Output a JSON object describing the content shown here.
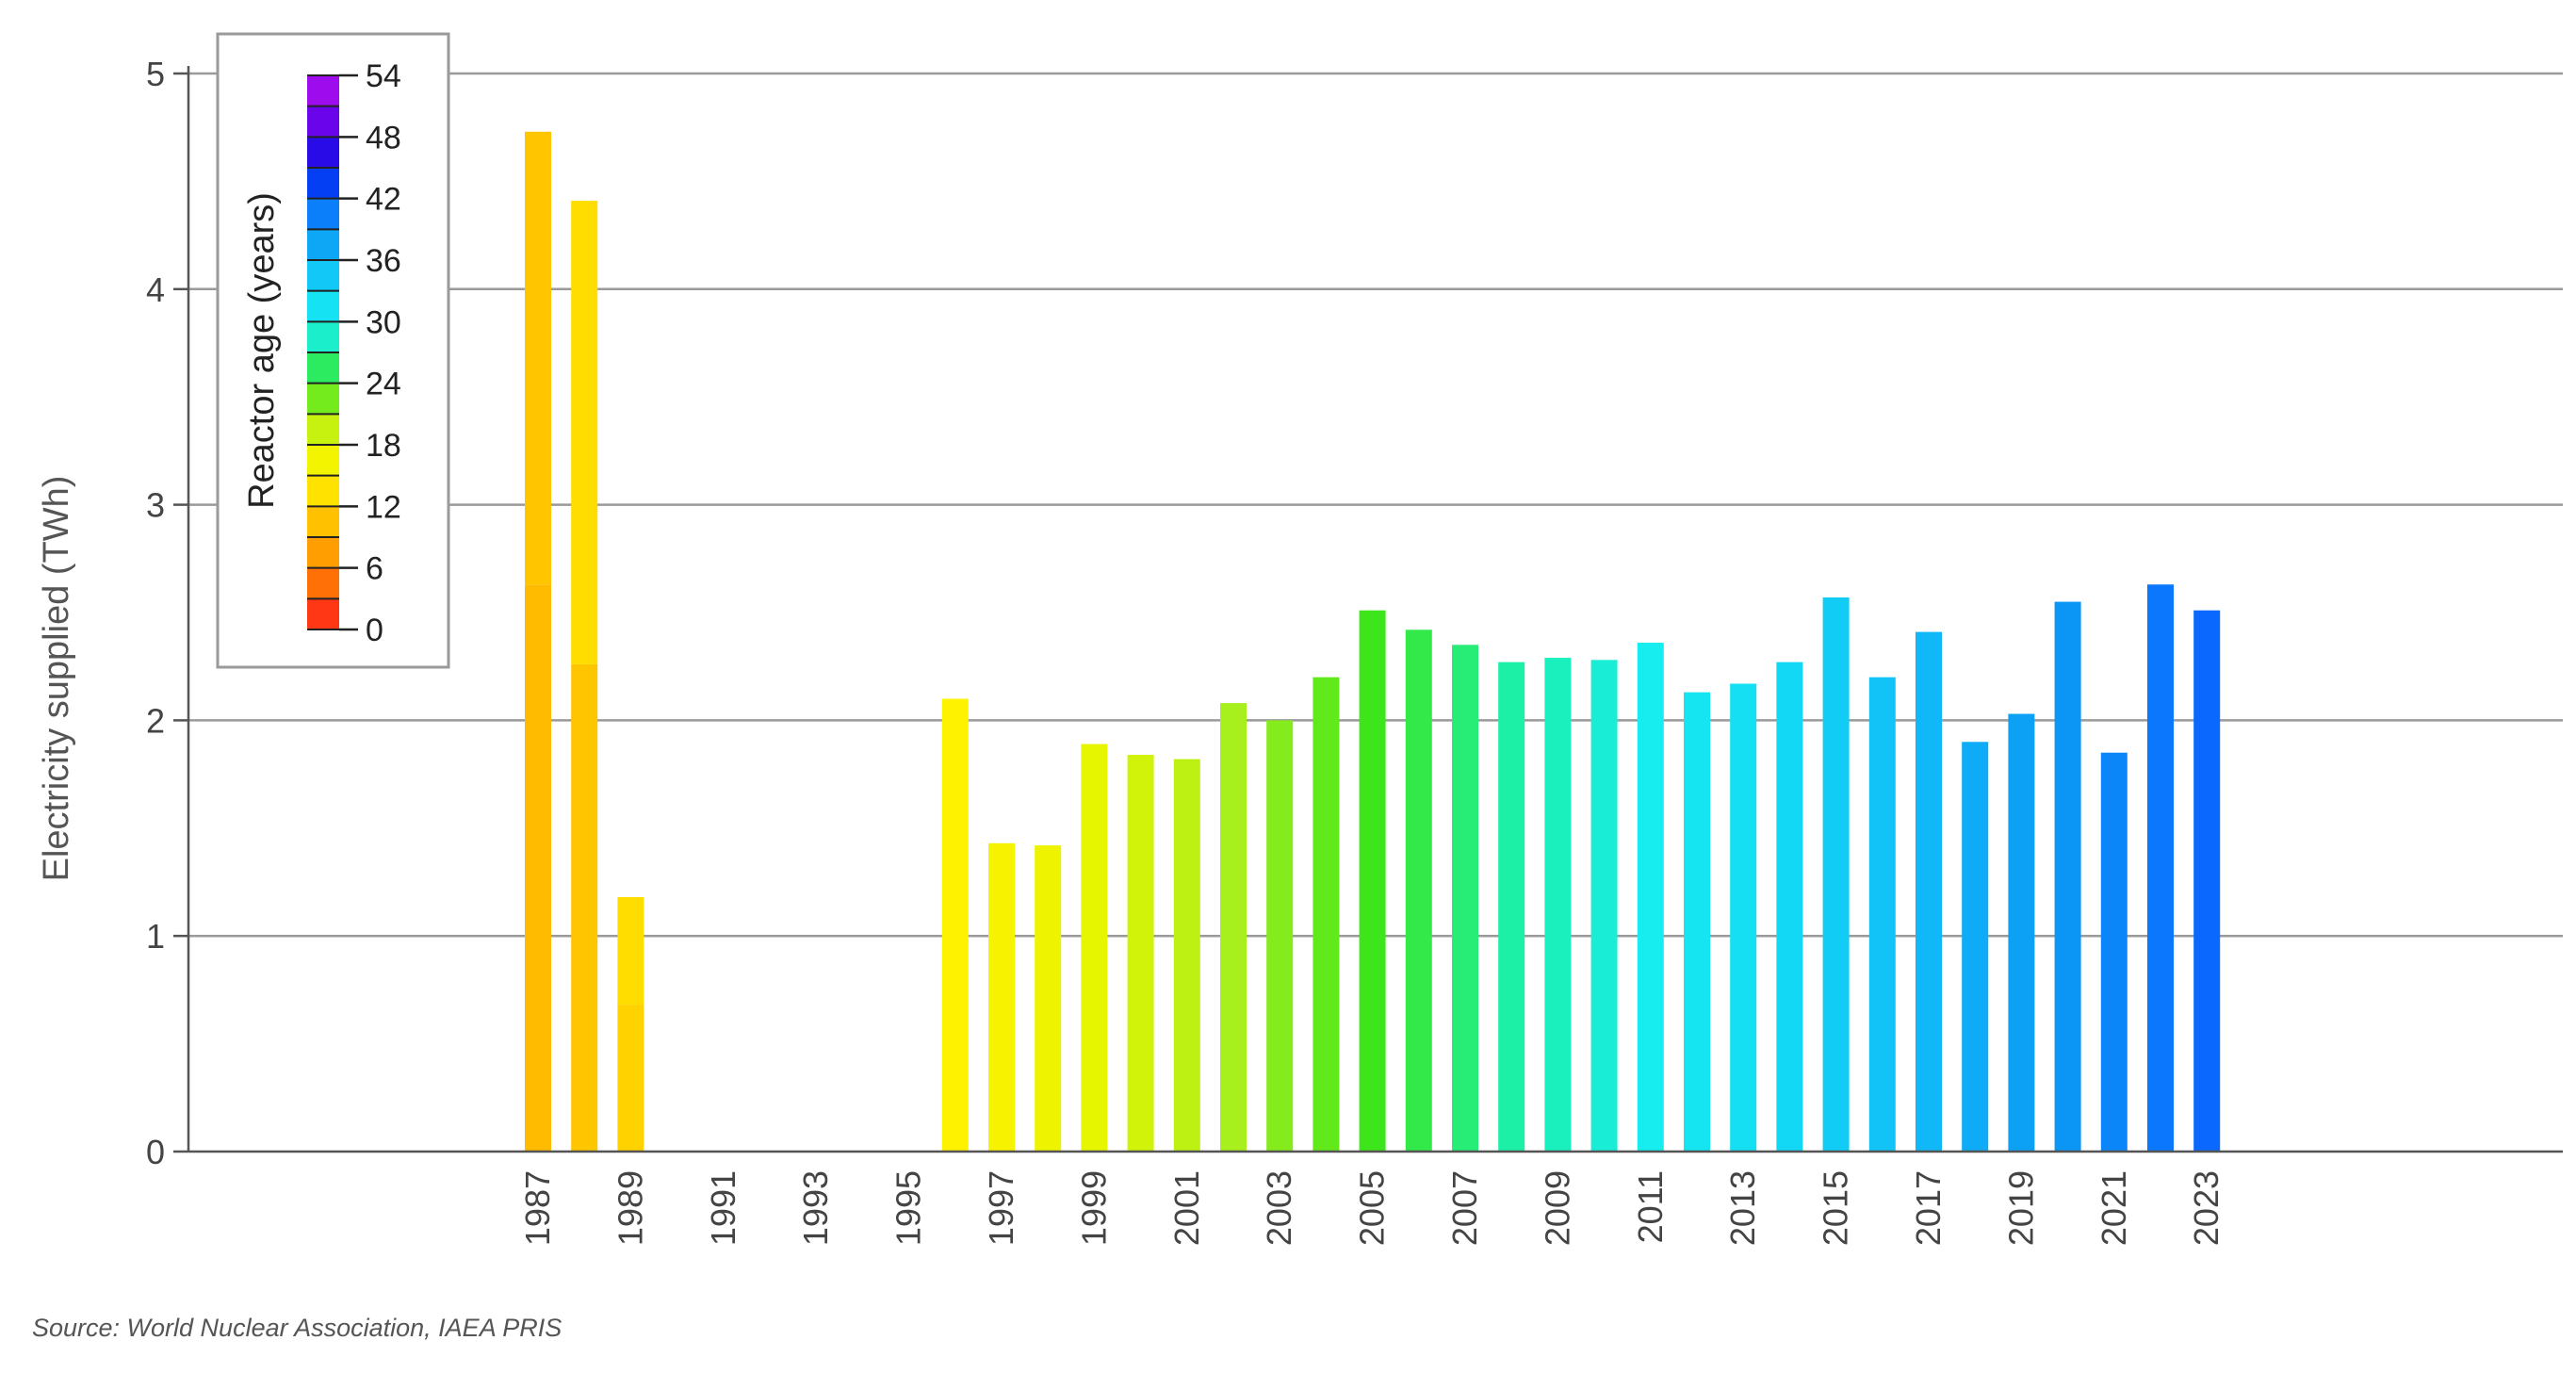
{
  "chart_data": {
    "type": "bar",
    "ylabel": "Electricity supplied (TWh)",
    "ylim": [
      0,
      5
    ],
    "yticks": [
      "0",
      "1",
      "2",
      "3",
      "4",
      "5"
    ],
    "grid": true,
    "x_tick_labels": [
      "1987",
      "1989",
      "1991",
      "1993",
      "1995",
      "1997",
      "1999",
      "2001",
      "2003",
      "2005",
      "2007",
      "2009",
      "2011",
      "2013",
      "2015",
      "2017",
      "2019",
      "2021",
      "2023"
    ],
    "categories": [
      "1987",
      "1988",
      "1989",
      "1990",
      "1991",
      "1992",
      "1993",
      "1994",
      "1995",
      "1996",
      "1997",
      "1998",
      "1999",
      "2000",
      "2001",
      "2002",
      "2003",
      "2004",
      "2005",
      "2006",
      "2007",
      "2008",
      "2009",
      "2010",
      "2011",
      "2012",
      "2013",
      "2014",
      "2015",
      "2016",
      "2017",
      "2018",
      "2019",
      "2020",
      "2021",
      "2022",
      "2023"
    ],
    "bars": [
      {
        "year": "1987",
        "segments": [
          {
            "value": 2.63,
            "age": 10
          },
          {
            "value": 2.1,
            "age": 11
          }
        ]
      },
      {
        "year": "1988",
        "segments": [
          {
            "value": 2.26,
            "age": 11
          },
          {
            "value": 2.15,
            "age": 13
          }
        ]
      },
      {
        "year": "1989",
        "segments": [
          {
            "value": 0.68,
            "age": 12
          },
          {
            "value": 0.5,
            "age": 13
          }
        ]
      },
      {
        "year": "1990",
        "segments": []
      },
      {
        "year": "1991",
        "segments": []
      },
      {
        "year": "1992",
        "segments": []
      },
      {
        "year": "1993",
        "segments": []
      },
      {
        "year": "1994",
        "segments": []
      },
      {
        "year": "1995",
        "segments": []
      },
      {
        "year": "1996",
        "segments": [
          {
            "value": 2.1,
            "age": 15
          }
        ]
      },
      {
        "year": "1997",
        "segments": [
          {
            "value": 1.43,
            "age": 16
          }
        ]
      },
      {
        "year": "1998",
        "segments": [
          {
            "value": 1.42,
            "age": 17
          }
        ]
      },
      {
        "year": "1999",
        "segments": [
          {
            "value": 1.89,
            "age": 18
          }
        ]
      },
      {
        "year": "2000",
        "segments": [
          {
            "value": 1.84,
            "age": 19
          }
        ]
      },
      {
        "year": "2001",
        "segments": [
          {
            "value": 1.82,
            "age": 20
          }
        ]
      },
      {
        "year": "2002",
        "segments": [
          {
            "value": 2.08,
            "age": 21
          }
        ]
      },
      {
        "year": "2003",
        "segments": [
          {
            "value": 2.0,
            "age": 22
          }
        ]
      },
      {
        "year": "2004",
        "segments": [
          {
            "value": 2.2,
            "age": 23
          }
        ]
      },
      {
        "year": "2005",
        "segments": [
          {
            "value": 2.51,
            "age": 24
          }
        ]
      },
      {
        "year": "2006",
        "segments": [
          {
            "value": 2.42,
            "age": 25
          }
        ]
      },
      {
        "year": "2007",
        "segments": [
          {
            "value": 2.35,
            "age": 26
          }
        ]
      },
      {
        "year": "2008",
        "segments": [
          {
            "value": 2.27,
            "age": 27
          }
        ]
      },
      {
        "year": "2009",
        "segments": [
          {
            "value": 2.29,
            "age": 28
          }
        ]
      },
      {
        "year": "2010",
        "segments": [
          {
            "value": 2.28,
            "age": 29
          }
        ]
      },
      {
        "year": "2011",
        "segments": [
          {
            "value": 2.36,
            "age": 30
          }
        ]
      },
      {
        "year": "2012",
        "segments": [
          {
            "value": 2.13,
            "age": 31
          }
        ]
      },
      {
        "year": "2013",
        "segments": [
          {
            "value": 2.17,
            "age": 32
          }
        ]
      },
      {
        "year": "2014",
        "segments": [
          {
            "value": 2.27,
            "age": 33
          }
        ]
      },
      {
        "year": "2015",
        "segments": [
          {
            "value": 2.57,
            "age": 34
          }
        ]
      },
      {
        "year": "2016",
        "segments": [
          {
            "value": 2.2,
            "age": 35
          }
        ]
      },
      {
        "year": "2017",
        "segments": [
          {
            "value": 2.41,
            "age": 36
          }
        ]
      },
      {
        "year": "2018",
        "segments": [
          {
            "value": 1.9,
            "age": 37
          }
        ]
      },
      {
        "year": "2019",
        "segments": [
          {
            "value": 2.03,
            "age": 38
          }
        ]
      },
      {
        "year": "2020",
        "segments": [
          {
            "value": 2.55,
            "age": 39
          }
        ]
      },
      {
        "year": "2021",
        "segments": [
          {
            "value": 1.85,
            "age": 40
          }
        ]
      },
      {
        "year": "2022",
        "segments": [
          {
            "value": 2.63,
            "age": 41
          }
        ]
      },
      {
        "year": "2023",
        "segments": [
          {
            "value": 2.51,
            "age": 42
          }
        ]
      }
    ],
    "legend": {
      "title": "Reactor age (years)",
      "placement": "top-left",
      "ticks": [
        "0",
        "6",
        "12",
        "18",
        "24",
        "30",
        "36",
        "42",
        "48",
        "54"
      ],
      "color_stops": [
        {
          "age": 0,
          "color": "#ff1a1a"
        },
        {
          "age": 6,
          "color": "#ff8c00"
        },
        {
          "age": 12,
          "color": "#ffd200"
        },
        {
          "age": 15,
          "color": "#fff200"
        },
        {
          "age": 18,
          "color": "#e6f500"
        },
        {
          "age": 21,
          "color": "#a8ef1e"
        },
        {
          "age": 24,
          "color": "#3de61a"
        },
        {
          "age": 27,
          "color": "#1cf0a6"
        },
        {
          "age": 30,
          "color": "#17ecee"
        },
        {
          "age": 33,
          "color": "#12d8f5"
        },
        {
          "age": 36,
          "color": "#10b8f7"
        },
        {
          "age": 39,
          "color": "#0b95f5"
        },
        {
          "age": 42,
          "color": "#0a68ff"
        },
        {
          "age": 45,
          "color": "#0015e6"
        },
        {
          "age": 48,
          "color": "#5000e8"
        },
        {
          "age": 54,
          "color": "#b810f0"
        }
      ]
    }
  },
  "footer": {
    "source": "Source: World Nuclear Association, IAEA PRIS"
  }
}
